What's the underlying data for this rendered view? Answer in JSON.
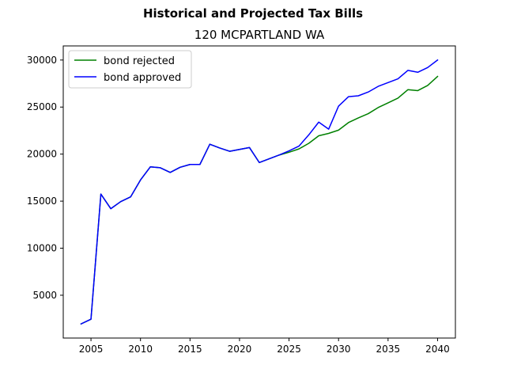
{
  "chart_data": {
    "type": "line",
    "suptitle": "Historical and Projected Tax Bills",
    "title": "120 MCPARTLAND WA",
    "xlabel": "",
    "ylabel": "",
    "xlim": [
      2002.2,
      2041.8
    ],
    "ylim": [
      450,
      31500
    ],
    "x_ticks": [
      2005,
      2010,
      2015,
      2020,
      2025,
      2030,
      2035,
      2040
    ],
    "y_ticks": [
      5000,
      10000,
      15000,
      20000,
      25000,
      30000
    ],
    "grid": false,
    "legend_position": "upper-left",
    "series": [
      {
        "name": "bond rejected",
        "color": "#008000",
        "x": [
          2004,
          2005,
          2006,
          2007,
          2008,
          2009,
          2010,
          2011,
          2012,
          2013,
          2014,
          2015,
          2016,
          2017,
          2018,
          2019,
          2020,
          2021,
          2022,
          2023,
          2024,
          2025,
          2026,
          2027,
          2028,
          2029,
          2030,
          2031,
          2032,
          2033,
          2034,
          2035,
          2036,
          2037,
          2038,
          2039,
          2040
        ],
        "values": [
          1950,
          2450,
          15750,
          14200,
          14950,
          15450,
          17250,
          18650,
          18550,
          18050,
          18600,
          18900,
          18900,
          21050,
          20650,
          20300,
          20500,
          20700,
          19100,
          19500,
          19900,
          20200,
          20550,
          21150,
          21950,
          22200,
          22550,
          23350,
          23850,
          24300,
          24950,
          25450,
          25950,
          26850,
          26750,
          27300,
          28250
        ]
      },
      {
        "name": "bond approved",
        "color": "#0000ff",
        "x": [
          2004,
          2005,
          2006,
          2007,
          2008,
          2009,
          2010,
          2011,
          2012,
          2013,
          2014,
          2015,
          2016,
          2017,
          2018,
          2019,
          2020,
          2021,
          2022,
          2023,
          2024,
          2025,
          2026,
          2027,
          2028,
          2029,
          2030,
          2031,
          2032,
          2033,
          2034,
          2035,
          2036,
          2037,
          2038,
          2039,
          2040
        ],
        "values": [
          1950,
          2450,
          15750,
          14200,
          14950,
          15450,
          17250,
          18650,
          18550,
          18050,
          18600,
          18900,
          18900,
          21050,
          20650,
          20300,
          20500,
          20700,
          19100,
          19500,
          19900,
          20350,
          20850,
          22050,
          23400,
          22650,
          25100,
          26100,
          26200,
          26600,
          27200,
          27600,
          28000,
          28900,
          28700,
          29200,
          30000
        ]
      }
    ]
  }
}
